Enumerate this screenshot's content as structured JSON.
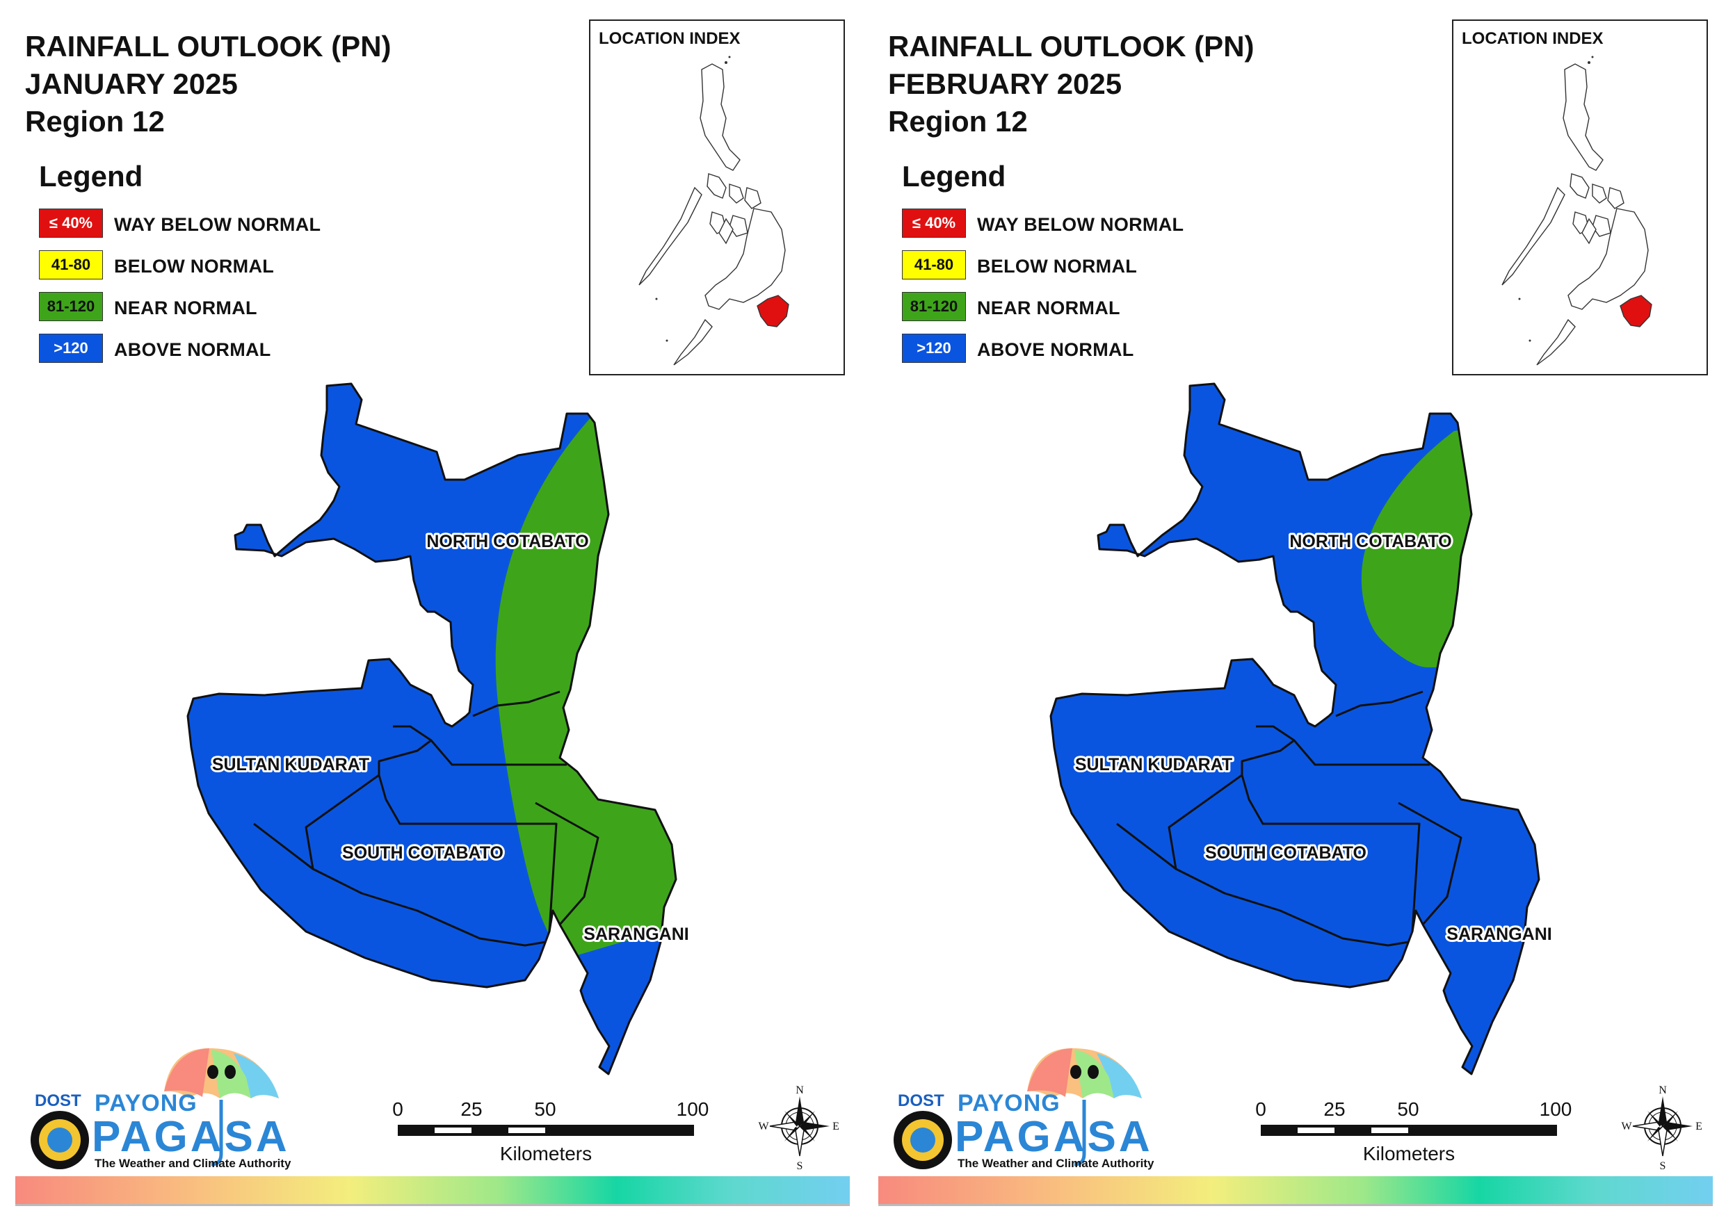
{
  "colors": {
    "way_below_normal": "#e01010",
    "below_normal": "#ffff00",
    "near_normal": "#3ea51a",
    "above_normal": "#0a55e0"
  },
  "legend": {
    "heading": "Legend",
    "items": [
      {
        "range": "≤ 40%",
        "label": "WAY BELOW NORMAL",
        "color": "#e01010",
        "text_color": "#ffffff"
      },
      {
        "range": "41-80",
        "label": "BELOW NORMAL",
        "color": "#ffff00",
        "text_color": "#111111"
      },
      {
        "range": "81-120",
        "label": "NEAR NORMAL",
        "color": "#3ea51a",
        "text_color": "#111111"
      },
      {
        "range": ">120",
        "label": "ABOVE NORMAL",
        "color": "#0a55e0",
        "text_color": "#ffffff"
      }
    ]
  },
  "location_index": {
    "title": "LOCATION INDEX"
  },
  "regions": {
    "north_cotabato": "NORTH COTABATO",
    "sultan_kudarat": "SULTAN KUDARAT",
    "south_cotabato": "SOUTH COTABATO",
    "sarangani": "SARANGANI"
  },
  "scale_bar": {
    "ticks": [
      "0",
      "25",
      "50",
      "100"
    ],
    "unit": "Kilometers"
  },
  "compass": {
    "n": "N",
    "s": "S",
    "e": "E",
    "w": "W"
  },
  "logo": {
    "dost": "DOST",
    "payong": "PAYONG",
    "pagasa": "PAGASA",
    "tagline": "The Weather and Climate Authority"
  },
  "panels": [
    {
      "title_line1": "RAINFALL OUTLOOK (PN)",
      "title_line2": "JANUARY 2025",
      "title_line3": "Region 12",
      "near_normal_zone": "east-north-cotabato-to-northern-sarangani"
    },
    {
      "title_line1": "RAINFALL OUTLOOK (PN)",
      "title_line2": "FEBRUARY 2025",
      "title_line3": "Region 12",
      "near_normal_zone": "east-north-cotabato"
    }
  ]
}
